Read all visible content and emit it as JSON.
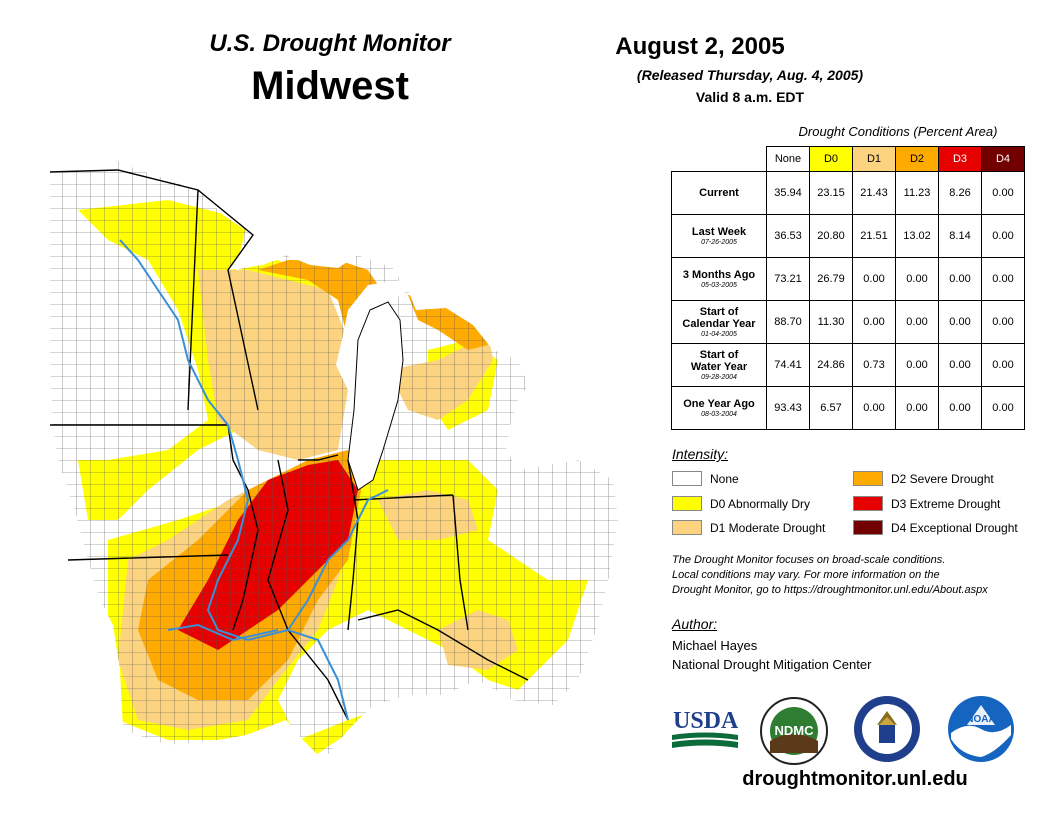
{
  "header": {
    "monitor_title": "U.S. Drought Monitor",
    "region": "Midwest",
    "date": "August 2, 2005",
    "released": "(Released Thursday, Aug. 4, 2005)",
    "valid": "Valid 8 a.m. EDT"
  },
  "table": {
    "caption": "Drought Conditions (Percent Area)",
    "columns": [
      "None",
      "D0",
      "D1",
      "D2",
      "D3",
      "D4"
    ],
    "column_colors": [
      "#ffffff",
      "#ffff00",
      "#fcd37f",
      "#ffaa00",
      "#e60000",
      "#730000"
    ],
    "rows": [
      {
        "label": "Current",
        "label2": "",
        "date": "",
        "values": [
          "35.94",
          "23.15",
          "21.43",
          "11.23",
          "8.26",
          "0.00"
        ]
      },
      {
        "label": "Last Week",
        "label2": "",
        "date": "07-26-2005",
        "values": [
          "36.53",
          "20.80",
          "21.51",
          "13.02",
          "8.14",
          "0.00"
        ]
      },
      {
        "label": "3 Months Ago",
        "label2": "",
        "date": "05-03-2005",
        "values": [
          "73.21",
          "26.79",
          "0.00",
          "0.00",
          "0.00",
          "0.00"
        ]
      },
      {
        "label": "Start of",
        "label2": "Calendar Year",
        "date": "01-04-2005",
        "values": [
          "88.70",
          "11.30",
          "0.00",
          "0.00",
          "0.00",
          "0.00"
        ]
      },
      {
        "label": "Start of",
        "label2": "Water Year",
        "date": "09-28-2004",
        "values": [
          "74.41",
          "24.86",
          "0.73",
          "0.00",
          "0.00",
          "0.00"
        ]
      },
      {
        "label": "One Year Ago",
        "label2": "",
        "date": "08-03-2004",
        "values": [
          "93.43",
          "6.57",
          "0.00",
          "0.00",
          "0.00",
          "0.00"
        ]
      }
    ]
  },
  "legend": {
    "title": "Intensity:",
    "items": [
      {
        "label": "None",
        "color": "#ffffff"
      },
      {
        "label": "D0 Abnormally Dry",
        "color": "#ffff00"
      },
      {
        "label": "D1 Moderate Drought",
        "color": "#fcd37f"
      },
      {
        "label": "D2 Severe Drought",
        "color": "#ffaa00"
      },
      {
        "label": "D3 Extreme Drought",
        "color": "#e60000"
      },
      {
        "label": "D4 Exceptional Drought",
        "color": "#730000"
      }
    ]
  },
  "note": {
    "line1": "The Drought Monitor focuses on broad-scale conditions.",
    "line2": "Local conditions may vary. For more information on the",
    "line3": "Drought Monitor, go to https://droughtmonitor.unl.edu/About.aspx"
  },
  "author": {
    "title": "Author:",
    "name": "Michael Hayes",
    "org": "National Drought Mitigation Center"
  },
  "logos": {
    "usda": "USDA",
    "ndmc": "NDMC",
    "noaa": "NOAA"
  },
  "website": "droughtmonitor.unl.edu"
}
